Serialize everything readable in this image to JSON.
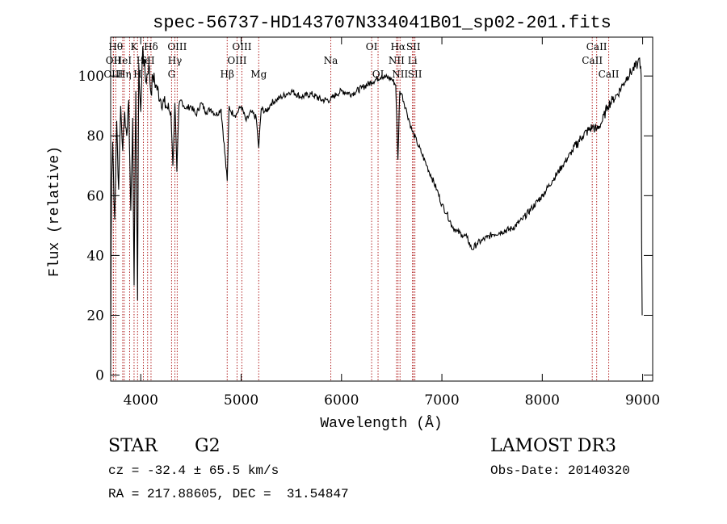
{
  "chart_data": {
    "type": "line",
    "title": "spec-56737-HD143707N334041B01_sp02-201.fits",
    "xlabel": "Wavelength (Å)",
    "ylabel": "Flux (relative)",
    "xlim": [
      3700,
      9100
    ],
    "ylim": [
      -2,
      113
    ],
    "xticks": [
      4000,
      5000,
      6000,
      7000,
      8000,
      9000
    ],
    "yticks": [
      0,
      20,
      40,
      60,
      80,
      100
    ],
    "series": [
      {
        "name": "flux",
        "color": "#000000",
        "x": [
          3700,
          3705,
          3710,
          3720,
          3740,
          3760,
          3780,
          3800,
          3820,
          3840,
          3860,
          3880,
          3900,
          3920,
          3933,
          3950,
          3968,
          3980,
          4000,
          4020,
          4050,
          4080,
          4102,
          4120,
          4150,
          4200,
          4250,
          4300,
          4320,
          4340,
          4360,
          4380,
          4400,
          4450,
          4500,
          4550,
          4600,
          4650,
          4700,
          4750,
          4800,
          4861,
          4880,
          4900,
          4950,
          5000,
          5050,
          5100,
          5150,
          5175,
          5200,
          5250,
          5300,
          5350,
          5400,
          5450,
          5500,
          5600,
          5700,
          5800,
          5890,
          5950,
          6000,
          6100,
          6200,
          6300,
          6400,
          6500,
          6540,
          6562,
          6580,
          6600,
          6650,
          6700,
          6750,
          6800,
          6850,
          6900,
          6950,
          7000,
          7050,
          7100,
          7150,
          7200,
          7250,
          7300,
          7350,
          7400,
          7450,
          7500,
          7600,
          7700,
          7800,
          7900,
          8000,
          8100,
          8200,
          8300,
          8400,
          8500,
          8542,
          8600,
          8650,
          8700,
          8750,
          8800,
          8850,
          8900,
          8950,
          8970,
          8985,
          8990,
          8995
        ],
        "y": [
          0,
          45,
          65,
          78,
          52,
          85,
          62,
          90,
          75,
          88,
          80,
          92,
          55,
          86,
          30,
          95,
          25,
          104,
          88,
          110,
          98,
          104,
          94,
          100,
          97,
          92,
          90,
          88,
          70,
          91,
          68,
          90,
          92,
          89,
          90,
          87,
          91,
          88,
          89,
          87,
          89,
          65,
          90,
          88,
          87,
          90,
          85,
          88,
          86,
          76,
          89,
          88,
          91,
          92,
          93,
          94,
          95,
          93,
          94,
          92,
          92,
          94,
          95,
          94,
          96,
          98,
          100,
          99,
          97,
          72,
          95,
          94,
          88,
          82,
          78,
          74,
          70,
          66,
          62,
          57,
          54,
          50,
          48,
          47,
          46,
          42,
          44,
          45,
          46,
          47,
          48,
          49,
          52,
          56,
          60,
          65,
          70,
          75,
          80,
          83,
          82,
          85,
          90,
          92,
          94,
          97,
          100,
          102,
          104,
          106,
          100,
          45,
          20
        ]
      }
    ],
    "lines": [
      {
        "x": 3750,
        "label": "Hθ",
        "row": 0
      },
      {
        "x": 3727,
        "label": "OII",
        "row": 1
      },
      {
        "x": 3727,
        "label": "OIII",
        "row": 2
      },
      {
        "x": 3820,
        "label": "HeI",
        "row": 1
      },
      {
        "x": 3835,
        "label": "Hη",
        "row": 2
      },
      {
        "x": 3889,
        "label": "",
        "row": 0
      },
      {
        "x": 3933,
        "label": "K",
        "row": 0
      },
      {
        "x": 3968,
        "label": "H",
        "row": 2
      },
      {
        "x": 4026,
        "label": "He",
        "row": 1
      },
      {
        "x": 4068,
        "label": "SII",
        "row": 1
      },
      {
        "x": 4102,
        "label": "Hδ",
        "row": 0
      },
      {
        "x": 4307,
        "label": "G",
        "row": 2
      },
      {
        "x": 4340,
        "label": "Hγ",
        "row": 1
      },
      {
        "x": 4363,
        "label": "OIII",
        "row": 0
      },
      {
        "x": 4861,
        "label": "Hβ",
        "row": 2
      },
      {
        "x": 4959,
        "label": "OIII",
        "row": 1
      },
      {
        "x": 5007,
        "label": "OIII",
        "row": 0
      },
      {
        "x": 5175,
        "label": "Mg",
        "row": 2
      },
      {
        "x": 5893,
        "label": "Na",
        "row": 1
      },
      {
        "x": 6300,
        "label": "OI",
        "row": 0
      },
      {
        "x": 6364,
        "label": "OI",
        "row": 2
      },
      {
        "x": 6548,
        "label": "NII",
        "row": 1
      },
      {
        "x": 6563,
        "label": "Hα",
        "row": 0
      },
      {
        "x": 6583,
        "label": "NII",
        "row": 2
      },
      {
        "x": 6707,
        "label": "Li",
        "row": 1
      },
      {
        "x": 6716,
        "label": "SII",
        "row": 0
      },
      {
        "x": 6731,
        "label": "SII",
        "row": 2
      },
      {
        "x": 8498,
        "label": "CaII",
        "row": 1
      },
      {
        "x": 8542,
        "label": "CaII",
        "row": 0
      },
      {
        "x": 8662,
        "label": "CaII",
        "row": 2
      }
    ],
    "line_color": "#b22222"
  },
  "footer": {
    "object_type": "STAR",
    "subclass": "G2",
    "survey": "LAMOST DR3",
    "redshift": "cz = -32.4 ± 65.5 km/s",
    "obs_date": "Obs-Date: 20140320",
    "coords": "RA = 217.88605, DEC =  31.54847"
  }
}
